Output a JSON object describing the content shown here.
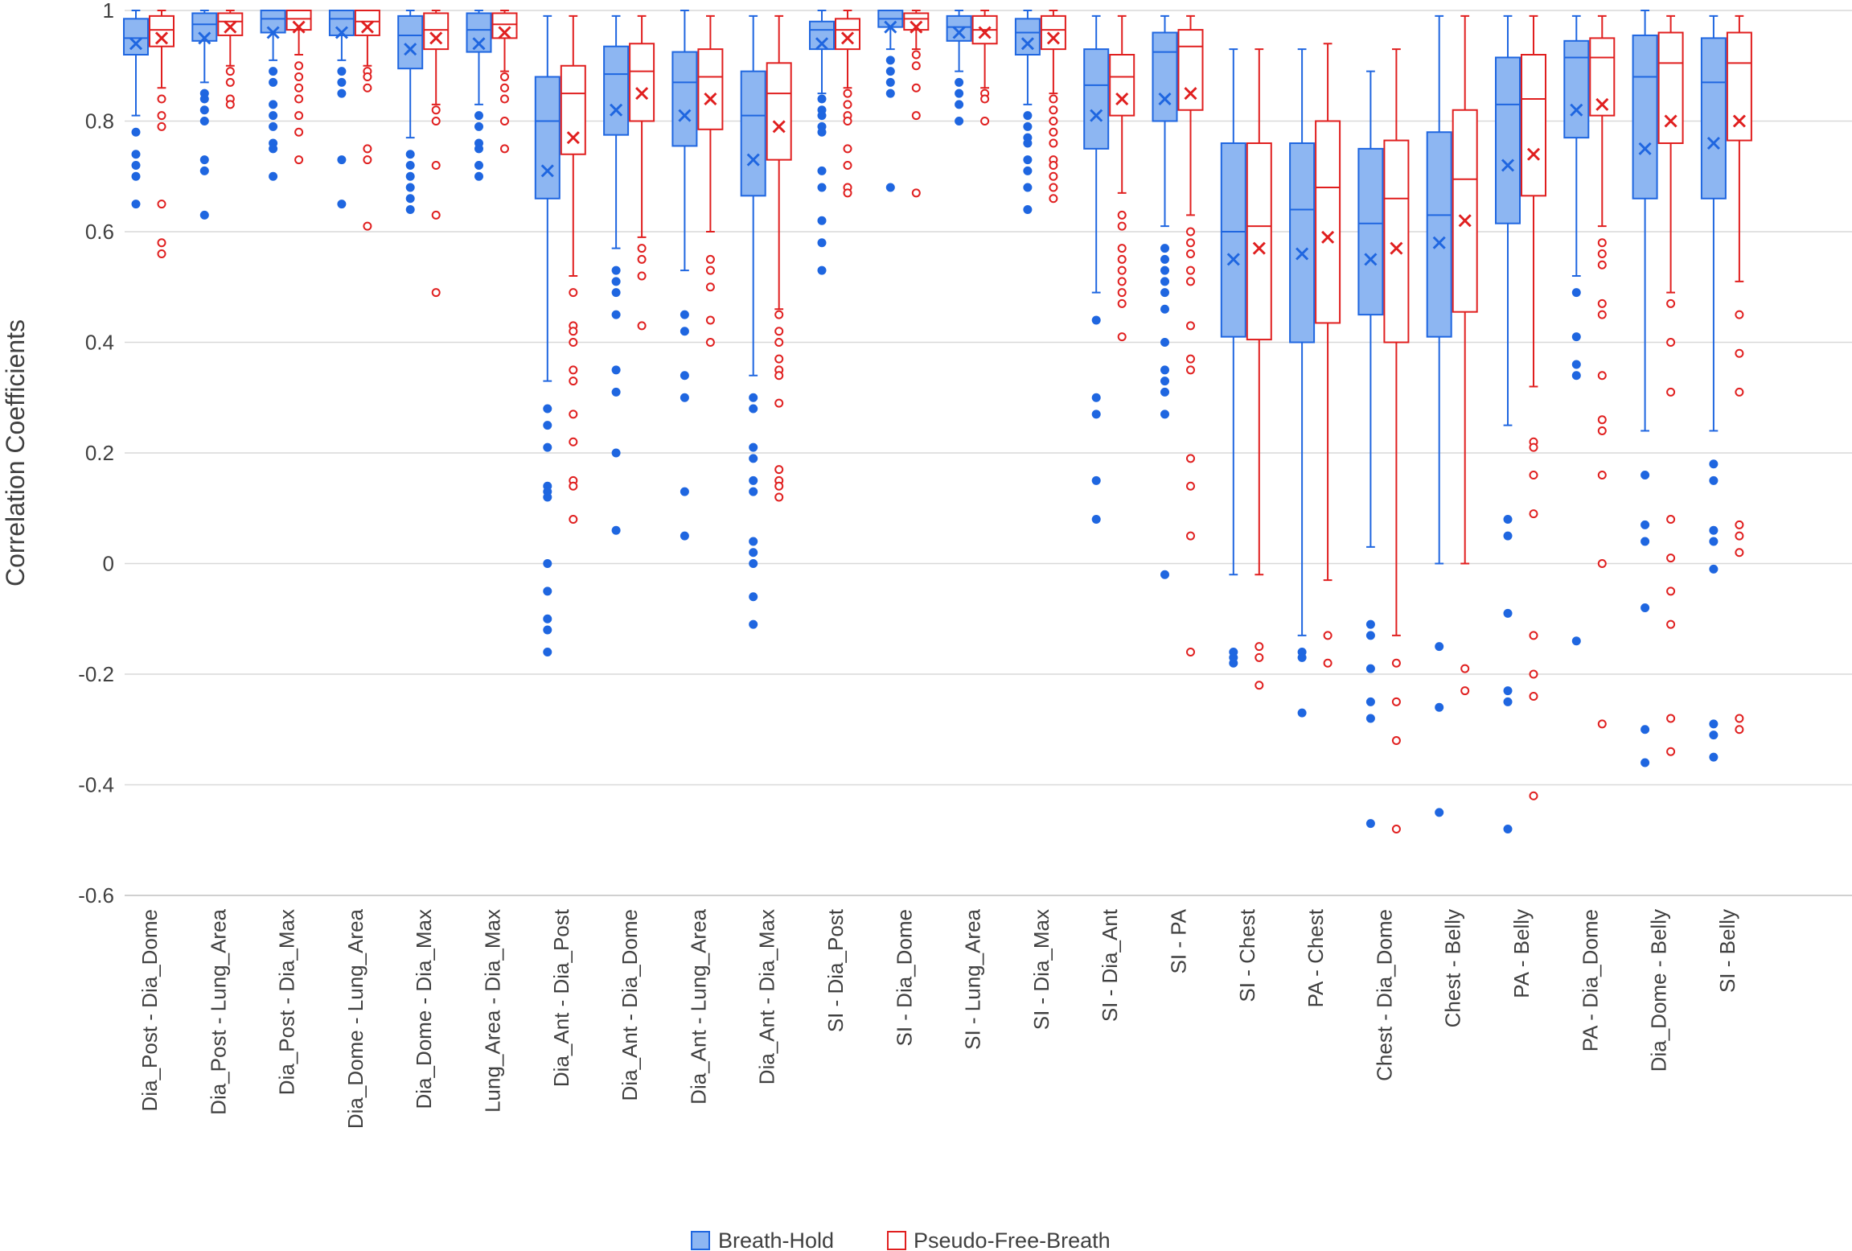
{
  "chart_data": {
    "type": "box",
    "title": "",
    "xlabel": "",
    "ylabel": "Correlation Coefficients",
    "ylim": [
      -0.6,
      1.0
    ],
    "yticks": [
      1,
      0.8,
      0.6,
      0.4,
      0.2,
      0,
      -0.2,
      -0.4,
      -0.6
    ],
    "ytick_labels": [
      "1",
      "0.8",
      "0.6",
      "0.4",
      "0.2",
      "0",
      "-0.2",
      "-0.4",
      "-0.6"
    ],
    "grid": true,
    "legend_position": "bottom-center",
    "colors": {
      "breath_hold": "#1f66e0",
      "breath_hold_fill": "#8db6f2",
      "pseudo_free": "#e01f1f"
    },
    "series": [
      {
        "name": "Breath-Hold",
        "key": "bh"
      },
      {
        "name": "Pseudo-Free-Breath",
        "key": "pf"
      }
    ],
    "categories": [
      {
        "label": "Dia_Post - Dia_Dome",
        "bh": {
          "min": 0.81,
          "q1": 0.92,
          "median": 0.95,
          "q3": 0.985,
          "max": 1.0,
          "mean": 0.94,
          "outliers": [
            0.78,
            0.74,
            0.72,
            0.7,
            0.65
          ]
        },
        "pf": {
          "min": 0.86,
          "q1": 0.935,
          "median": 0.965,
          "q3": 0.99,
          "max": 1.0,
          "mean": 0.95,
          "outliers": [
            0.84,
            0.81,
            0.79,
            0.65,
            0.58,
            0.56
          ]
        }
      },
      {
        "label": "Dia_Post - Lung_Area",
        "bh": {
          "min": 0.87,
          "q1": 0.945,
          "median": 0.975,
          "q3": 0.995,
          "max": 1.0,
          "mean": 0.95,
          "outliers": [
            0.85,
            0.84,
            0.82,
            0.8,
            0.73,
            0.71,
            0.63
          ]
        },
        "pf": {
          "min": 0.9,
          "q1": 0.955,
          "median": 0.98,
          "q3": 0.995,
          "max": 1.0,
          "mean": 0.97,
          "outliers": [
            0.89,
            0.87,
            0.84,
            0.83
          ]
        }
      },
      {
        "label": "Dia_Post - Dia_Max",
        "bh": {
          "min": 0.91,
          "q1": 0.96,
          "median": 0.985,
          "q3": 1.0,
          "max": 1.0,
          "mean": 0.96,
          "outliers": [
            0.89,
            0.87,
            0.83,
            0.81,
            0.79,
            0.76,
            0.75,
            0.7
          ]
        },
        "pf": {
          "min": 0.92,
          "q1": 0.965,
          "median": 0.985,
          "q3": 1.0,
          "max": 1.0,
          "mean": 0.97,
          "outliers": [
            0.9,
            0.88,
            0.86,
            0.84,
            0.81,
            0.78,
            0.73
          ]
        }
      },
      {
        "label": "Dia_Dome - Lung_Area",
        "bh": {
          "min": 0.91,
          "q1": 0.955,
          "median": 0.985,
          "q3": 1.0,
          "max": 1.0,
          "mean": 0.96,
          "outliers": [
            0.89,
            0.87,
            0.85,
            0.73,
            0.65
          ]
        },
        "pf": {
          "min": 0.9,
          "q1": 0.955,
          "median": 0.98,
          "q3": 1.0,
          "max": 1.0,
          "mean": 0.97,
          "outliers": [
            0.89,
            0.88,
            0.86,
            0.75,
            0.73,
            0.61
          ]
        }
      },
      {
        "label": "Dia_Dome - Dia_Max",
        "bh": {
          "min": 0.77,
          "q1": 0.895,
          "median": 0.955,
          "q3": 0.99,
          "max": 1.0,
          "mean": 0.93,
          "outliers": [
            0.74,
            0.72,
            0.7,
            0.68,
            0.66,
            0.64
          ]
        },
        "pf": {
          "min": 0.83,
          "q1": 0.93,
          "median": 0.965,
          "q3": 0.995,
          "max": 1.0,
          "mean": 0.95,
          "outliers": [
            0.82,
            0.8,
            0.72,
            0.63,
            0.49
          ]
        }
      },
      {
        "label": "Lung_Area - Dia_Max",
        "bh": {
          "min": 0.83,
          "q1": 0.925,
          "median": 0.965,
          "q3": 0.995,
          "max": 1.0,
          "mean": 0.94,
          "outliers": [
            0.81,
            0.79,
            0.76,
            0.75,
            0.72,
            0.7
          ]
        },
        "pf": {
          "min": 0.89,
          "q1": 0.95,
          "median": 0.975,
          "q3": 0.995,
          "max": 1.0,
          "mean": 0.96,
          "outliers": [
            0.88,
            0.86,
            0.84,
            0.8,
            0.75
          ]
        }
      },
      {
        "label": "Dia_Ant - Dia_Post",
        "bh": {
          "min": 0.33,
          "q1": 0.66,
          "median": 0.8,
          "q3": 0.88,
          "max": 0.99,
          "mean": 0.71,
          "outliers": [
            0.28,
            0.25,
            0.21,
            0.14,
            0.13,
            0.12,
            0.0,
            -0.05,
            -0.1,
            -0.12,
            -0.16
          ]
        },
        "pf": {
          "min": 0.52,
          "q1": 0.74,
          "median": 0.85,
          "q3": 0.9,
          "max": 0.99,
          "mean": 0.77,
          "outliers": [
            0.49,
            0.43,
            0.42,
            0.4,
            0.35,
            0.33,
            0.27,
            0.22,
            0.15,
            0.14,
            0.08
          ]
        }
      },
      {
        "label": "Dia_Ant - Dia_Dome",
        "bh": {
          "min": 0.57,
          "q1": 0.775,
          "median": 0.885,
          "q3": 0.935,
          "max": 0.99,
          "mean": 0.82,
          "outliers": [
            0.53,
            0.51,
            0.49,
            0.45,
            0.35,
            0.31,
            0.2,
            0.06
          ]
        },
        "pf": {
          "min": 0.59,
          "q1": 0.8,
          "median": 0.89,
          "q3": 0.94,
          "max": 0.99,
          "mean": 0.85,
          "outliers": [
            0.57,
            0.55,
            0.52,
            0.43
          ]
        }
      },
      {
        "label": "Dia_Ant - Lung_Area",
        "bh": {
          "min": 0.53,
          "q1": 0.755,
          "median": 0.87,
          "q3": 0.925,
          "max": 1.0,
          "mean": 0.81,
          "outliers": [
            0.45,
            0.42,
            0.34,
            0.3,
            0.13,
            0.05
          ]
        },
        "pf": {
          "min": 0.6,
          "q1": 0.785,
          "median": 0.88,
          "q3": 0.93,
          "max": 0.99,
          "mean": 0.84,
          "outliers": [
            0.55,
            0.53,
            0.5,
            0.44,
            0.4
          ]
        }
      },
      {
        "label": "Dia_Ant - Dia_Max",
        "bh": {
          "min": 0.34,
          "q1": 0.665,
          "median": 0.81,
          "q3": 0.89,
          "max": 0.99,
          "mean": 0.73,
          "outliers": [
            0.3,
            0.28,
            0.21,
            0.19,
            0.15,
            0.13,
            0.04,
            0.02,
            0.0,
            -0.06,
            -0.11
          ]
        },
        "pf": {
          "min": 0.46,
          "q1": 0.73,
          "median": 0.85,
          "q3": 0.905,
          "max": 0.99,
          "mean": 0.79,
          "outliers": [
            0.45,
            0.42,
            0.4,
            0.37,
            0.35,
            0.34,
            0.29,
            0.17,
            0.15,
            0.14,
            0.12
          ]
        }
      },
      {
        "label": "SI - Dia_Post",
        "bh": {
          "min": 0.85,
          "q1": 0.93,
          "median": 0.965,
          "q3": 0.98,
          "max": 1.0,
          "mean": 0.94,
          "outliers": [
            0.84,
            0.82,
            0.81,
            0.79,
            0.78,
            0.71,
            0.68,
            0.62,
            0.58,
            0.53
          ]
        },
        "pf": {
          "min": 0.86,
          "q1": 0.93,
          "median": 0.965,
          "q3": 0.985,
          "max": 1.0,
          "mean": 0.95,
          "outliers": [
            0.85,
            0.83,
            0.81,
            0.8,
            0.75,
            0.72,
            0.68,
            0.67
          ]
        }
      },
      {
        "label": "SI - Dia_Dome",
        "bh": {
          "min": 0.93,
          "q1": 0.97,
          "median": 0.985,
          "q3": 1.0,
          "max": 1.0,
          "mean": 0.97,
          "outliers": [
            0.91,
            0.89,
            0.87,
            0.85,
            0.68
          ]
        },
        "pf": {
          "min": 0.93,
          "q1": 0.965,
          "median": 0.985,
          "q3": 0.995,
          "max": 1.0,
          "mean": 0.97,
          "outliers": [
            0.92,
            0.9,
            0.86,
            0.81,
            0.67
          ]
        }
      },
      {
        "label": "SI - Lung_Area",
        "bh": {
          "min": 0.89,
          "q1": 0.945,
          "median": 0.97,
          "q3": 0.99,
          "max": 1.0,
          "mean": 0.96,
          "outliers": [
            0.87,
            0.85,
            0.83,
            0.8
          ]
        },
        "pf": {
          "min": 0.86,
          "q1": 0.94,
          "median": 0.965,
          "q3": 0.99,
          "max": 1.0,
          "mean": 0.96,
          "outliers": [
            0.85,
            0.84,
            0.8
          ]
        }
      },
      {
        "label": "SI - Dia_Max",
        "bh": {
          "min": 0.83,
          "q1": 0.92,
          "median": 0.96,
          "q3": 0.985,
          "max": 1.0,
          "mean": 0.94,
          "outliers": [
            0.81,
            0.79,
            0.77,
            0.76,
            0.73,
            0.71,
            0.68,
            0.64
          ]
        },
        "pf": {
          "min": 0.85,
          "q1": 0.93,
          "median": 0.965,
          "q3": 0.99,
          "max": 1.0,
          "mean": 0.95,
          "outliers": [
            0.84,
            0.82,
            0.8,
            0.78,
            0.76,
            0.73,
            0.72,
            0.7,
            0.68,
            0.66
          ]
        }
      },
      {
        "label": "SI - Dia_Ant",
        "bh": {
          "min": 0.49,
          "q1": 0.75,
          "median": 0.865,
          "q3": 0.93,
          "max": 0.99,
          "mean": 0.81,
          "outliers": [
            0.44,
            0.3,
            0.27,
            0.15,
            0.08
          ]
        },
        "pf": {
          "min": 0.67,
          "q1": 0.81,
          "median": 0.88,
          "q3": 0.92,
          "max": 0.99,
          "mean": 0.84,
          "outliers": [
            0.63,
            0.61,
            0.57,
            0.55,
            0.53,
            0.51,
            0.49,
            0.47,
            0.41
          ]
        }
      },
      {
        "label": "SI - PA",
        "bh": {
          "min": 0.61,
          "q1": 0.8,
          "median": 0.925,
          "q3": 0.96,
          "max": 0.99,
          "mean": 0.84,
          "outliers": [
            0.57,
            0.55,
            0.53,
            0.51,
            0.49,
            0.46,
            0.4,
            0.35,
            0.33,
            0.31,
            0.27,
            -0.02
          ]
        },
        "pf": {
          "min": 0.63,
          "q1": 0.82,
          "median": 0.935,
          "q3": 0.965,
          "max": 0.99,
          "mean": 0.85,
          "outliers": [
            0.6,
            0.58,
            0.56,
            0.53,
            0.51,
            0.43,
            0.37,
            0.35,
            0.19,
            0.14,
            0.05,
            -0.16
          ]
        }
      },
      {
        "label": "SI - Chest",
        "bh": {
          "min": -0.02,
          "q1": 0.41,
          "median": 0.6,
          "q3": 0.76,
          "max": 0.93,
          "mean": 0.55,
          "outliers": [
            -0.16,
            -0.17,
            -0.18
          ]
        },
        "pf": {
          "min": -0.02,
          "q1": 0.405,
          "median": 0.61,
          "q3": 0.76,
          "max": 0.93,
          "mean": 0.57,
          "outliers": [
            -0.15,
            -0.17,
            -0.22
          ]
        }
      },
      {
        "label": "PA - Chest",
        "bh": {
          "min": -0.13,
          "q1": 0.4,
          "median": 0.64,
          "q3": 0.76,
          "max": 0.93,
          "mean": 0.56,
          "outliers": [
            -0.16,
            -0.17,
            -0.27
          ]
        },
        "pf": {
          "min": -0.03,
          "q1": 0.435,
          "median": 0.68,
          "q3": 0.8,
          "max": 0.94,
          "mean": 0.59,
          "outliers": [
            -0.13,
            -0.18
          ]
        }
      },
      {
        "label": "Chest - Dia_Dome",
        "bh": {
          "min": 0.03,
          "q1": 0.45,
          "median": 0.615,
          "q3": 0.75,
          "max": 0.89,
          "mean": 0.55,
          "outliers": [
            -0.11,
            -0.13,
            -0.19,
            -0.25,
            -0.28,
            -0.47
          ]
        },
        "pf": {
          "min": -0.13,
          "q1": 0.4,
          "median": 0.66,
          "q3": 0.765,
          "max": 0.93,
          "mean": 0.57,
          "outliers": [
            -0.18,
            -0.25,
            -0.32,
            -0.48
          ]
        }
      },
      {
        "label": "Chest - Belly",
        "bh": {
          "min": 0.0,
          "q1": 0.41,
          "median": 0.63,
          "q3": 0.78,
          "max": 0.99,
          "mean": 0.58,
          "outliers": [
            -0.15,
            -0.26,
            -0.45
          ]
        },
        "pf": {
          "min": 0.0,
          "q1": 0.455,
          "median": 0.695,
          "q3": 0.82,
          "max": 0.99,
          "mean": 0.62,
          "outliers": [
            -0.19,
            -0.23
          ]
        }
      },
      {
        "label": "PA - Belly",
        "bh": {
          "min": 0.25,
          "q1": 0.615,
          "median": 0.83,
          "q3": 0.915,
          "max": 0.99,
          "mean": 0.72,
          "outliers": [
            0.08,
            0.05,
            -0.09,
            -0.23,
            -0.25,
            -0.48
          ]
        },
        "pf": {
          "min": 0.32,
          "q1": 0.665,
          "median": 0.84,
          "q3": 0.92,
          "max": 0.99,
          "mean": 0.74,
          "outliers": [
            0.22,
            0.21,
            0.16,
            0.09,
            -0.13,
            -0.2,
            -0.24,
            -0.42
          ]
        }
      },
      {
        "label": "PA - Dia_Dome",
        "bh": {
          "min": 0.52,
          "q1": 0.77,
          "median": 0.915,
          "q3": 0.945,
          "max": 0.99,
          "mean": 0.82,
          "outliers": [
            0.49,
            0.41,
            0.36,
            0.34,
            -0.14
          ]
        },
        "pf": {
          "min": 0.61,
          "q1": 0.81,
          "median": 0.915,
          "q3": 0.95,
          "max": 0.99,
          "mean": 0.83,
          "outliers": [
            0.58,
            0.56,
            0.54,
            0.47,
            0.45,
            0.34,
            0.26,
            0.24,
            0.16,
            0.0,
            -0.29
          ]
        }
      },
      {
        "label": "Dia_Dome - Belly",
        "bh": {
          "min": 0.24,
          "q1": 0.66,
          "median": 0.88,
          "q3": 0.955,
          "max": 1.0,
          "mean": 0.75,
          "outliers": [
            0.16,
            0.07,
            0.04,
            -0.08,
            -0.3,
            -0.36
          ]
        },
        "pf": {
          "min": 0.49,
          "q1": 0.76,
          "median": 0.905,
          "q3": 0.96,
          "max": 0.99,
          "mean": 0.8,
          "outliers": [
            0.47,
            0.4,
            0.31,
            0.08,
            0.01,
            -0.05,
            -0.11,
            -0.28,
            -0.34
          ]
        }
      },
      {
        "label": "SI - Belly",
        "bh": {
          "min": 0.24,
          "q1": 0.66,
          "median": 0.87,
          "q3": 0.95,
          "max": 0.99,
          "mean": 0.76,
          "outliers": [
            0.18,
            0.15,
            0.06,
            0.04,
            -0.01,
            -0.29,
            -0.31,
            -0.35
          ]
        },
        "pf": {
          "min": 0.51,
          "q1": 0.765,
          "median": 0.905,
          "q3": 0.96,
          "max": 0.99,
          "mean": 0.8,
          "outliers": [
            0.45,
            0.38,
            0.31,
            0.07,
            0.05,
            0.02,
            -0.28,
            -0.3
          ]
        }
      }
    ]
  }
}
